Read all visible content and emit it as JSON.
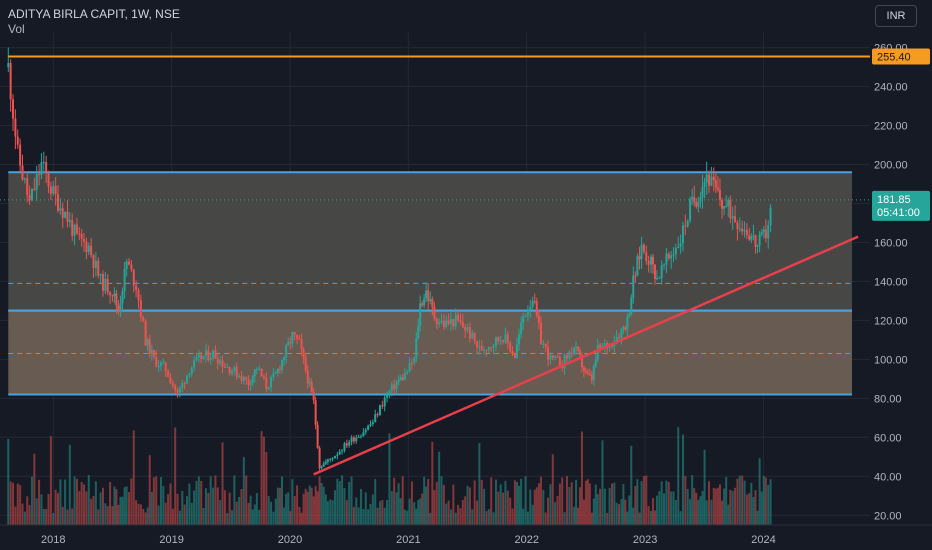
{
  "header": {
    "symbol_line": "ADITYA BIRLA CAPIT, 1W, NSE",
    "volume_label": "Vol"
  },
  "currency_button": "INR",
  "colors": {
    "background": "#161a25",
    "up": "#26a69a",
    "down": "#ef5350",
    "channel_line": "#4aa3e0",
    "upper_zone": "#4a4a48",
    "lower_zone": "#6b5f54",
    "resistance": "#f59a23",
    "trendline": "#e8404a",
    "dashed": "#4aa3e0"
  },
  "chart_data": {
    "type": "candlestick",
    "x_axis": {
      "tick_labels": [
        "2018",
        "2019",
        "2020",
        "2021",
        "2022",
        "2023",
        "2024"
      ],
      "range": [
        2017.55,
        2024.9
      ]
    },
    "y_axis": {
      "tick_labels": [
        "20.00",
        "40.00",
        "60.00",
        "80.00",
        "100.00",
        "120.00",
        "140.00",
        "160.00",
        "180.00",
        "200.00",
        "220.00",
        "240.00",
        "260.00"
      ],
      "range": [
        15,
        268
      ]
    },
    "price_labels": [
      {
        "text": "255.40",
        "value": 255.4,
        "color": "#f59a23"
      },
      {
        "text": "181.85",
        "sub": "05:41:00",
        "value": 181.85,
        "color": "#26a69a"
      }
    ],
    "resistance_line": 255.4,
    "current_price": 181.85,
    "zones": [
      {
        "name": "upper",
        "from": 125,
        "to": 196
      },
      {
        "name": "lower",
        "from": 82,
        "to": 125
      }
    ],
    "dashed_levels": [
      139,
      103
    ],
    "trendline": {
      "from": {
        "x": 2020.2,
        "y": 41
      },
      "to": {
        "x": 2024.8,
        "y": 163
      }
    },
    "price_series": [
      [
        2017.62,
        250
      ],
      [
        2017.7,
        205
      ],
      [
        2017.8,
        180
      ],
      [
        2017.9,
        200
      ],
      [
        2018.0,
        185
      ],
      [
        2018.1,
        175
      ],
      [
        2018.2,
        162
      ],
      [
        2018.3,
        158
      ],
      [
        2018.4,
        140
      ],
      [
        2018.5,
        135
      ],
      [
        2018.55,
        125
      ],
      [
        2018.62,
        150
      ],
      [
        2018.7,
        138
      ],
      [
        2018.78,
        110
      ],
      [
        2018.85,
        100
      ],
      [
        2018.95,
        95
      ],
      [
        2019.05,
        82
      ],
      [
        2019.15,
        95
      ],
      [
        2019.25,
        101
      ],
      [
        2019.35,
        103
      ],
      [
        2019.45,
        97
      ],
      [
        2019.55,
        93
      ],
      [
        2019.65,
        88
      ],
      [
        2019.72,
        96
      ],
      [
        2019.8,
        86
      ],
      [
        2019.88,
        92
      ],
      [
        2019.95,
        102
      ],
      [
        2020.02,
        112
      ],
      [
        2020.08,
        108
      ],
      [
        2020.15,
        90
      ],
      [
        2020.2,
        78
      ],
      [
        2020.25,
        45
      ],
      [
        2020.32,
        48
      ],
      [
        2020.4,
        52
      ],
      [
        2020.5,
        58
      ],
      [
        2020.6,
        62
      ],
      [
        2020.7,
        68
      ],
      [
        2020.8,
        80
      ],
      [
        2020.9,
        88
      ],
      [
        2020.97,
        92
      ],
      [
        2021.05,
        100
      ],
      [
        2021.1,
        128
      ],
      [
        2021.15,
        135
      ],
      [
        2021.22,
        122
      ],
      [
        2021.3,
        118
      ],
      [
        2021.4,
        120
      ],
      [
        2021.5,
        115
      ],
      [
        2021.6,
        105
      ],
      [
        2021.7,
        108
      ],
      [
        2021.8,
        112
      ],
      [
        2021.9,
        102
      ],
      [
        2021.97,
        122
      ],
      [
        2022.05,
        132
      ],
      [
        2022.12,
        110
      ],
      [
        2022.2,
        100
      ],
      [
        2022.3,
        98
      ],
      [
        2022.4,
        106
      ],
      [
        2022.45,
        100
      ],
      [
        2022.5,
        92
      ],
      [
        2022.55,
        90
      ],
      [
        2022.6,
        105
      ],
      [
        2022.7,
        108
      ],
      [
        2022.8,
        115
      ],
      [
        2022.85,
        120
      ],
      [
        2022.9,
        140
      ],
      [
        2022.97,
        158
      ],
      [
        2023.05,
        150
      ],
      [
        2023.1,
        142
      ],
      [
        2023.2,
        152
      ],
      [
        2023.3,
        162
      ],
      [
        2023.38,
        178
      ],
      [
        2023.45,
        185
      ],
      [
        2023.52,
        195
      ],
      [
        2023.58,
        188
      ],
      [
        2023.65,
        180
      ],
      [
        2023.72,
        176
      ],
      [
        2023.8,
        170
      ],
      [
        2023.88,
        165
      ],
      [
        2023.95,
        158
      ],
      [
        2024.02,
        165
      ],
      [
        2024.08,
        182
      ]
    ]
  }
}
